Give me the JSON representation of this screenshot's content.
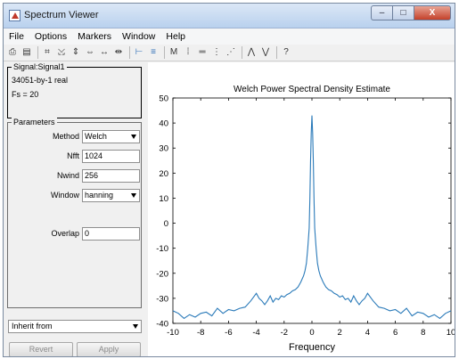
{
  "window": {
    "title": "Spectrum Viewer",
    "min_glyph": "–",
    "max_glyph": "□",
    "close_glyph": "X"
  },
  "menu": [
    "File",
    "Options",
    "Markers",
    "Window",
    "Help"
  ],
  "toolbar": {
    "icons": [
      {
        "name": "print-icon",
        "glyph": "⎙"
      },
      {
        "name": "print-preview-icon",
        "glyph": "▤"
      },
      {
        "sep": true
      },
      {
        "name": "zoom-box-icon",
        "glyph": "⌗"
      },
      {
        "name": "zoom-out-icon",
        "glyph": "⤩"
      },
      {
        "name": "zoom-y-icon",
        "glyph": "⇕"
      },
      {
        "name": "zoom-x-in-icon",
        "glyph": "⇔"
      },
      {
        "name": "zoom-x-out-icon",
        "glyph": "↔"
      },
      {
        "name": "zoom-full-icon",
        "glyph": "⇹"
      },
      {
        "sep": true
      },
      {
        "name": "select-line-icon",
        "glyph": "⊢",
        "blue": true
      },
      {
        "name": "legend-icon",
        "glyph": "≡",
        "blue": true
      },
      {
        "sep": true
      },
      {
        "name": "markers-icon",
        "glyph": "M"
      },
      {
        "name": "vertical-markers-icon",
        "glyph": "⁞"
      },
      {
        "name": "horizontal-markers-icon",
        "glyph": "═"
      },
      {
        "name": "track-markers-icon",
        "glyph": "⋮"
      },
      {
        "name": "slope-markers-icon",
        "glyph": "⋰"
      },
      {
        "sep": true
      },
      {
        "name": "peaks-icon",
        "glyph": "⋀"
      },
      {
        "name": "valleys-icon",
        "glyph": "⋁"
      },
      {
        "sep": true
      },
      {
        "name": "whats-this-icon",
        "glyph": "?"
      }
    ]
  },
  "signal": {
    "group": "Signal:Signal1",
    "size": "34051-by-1 real",
    "fs": "Fs = 20"
  },
  "parameters": {
    "group": "Parameters",
    "method_label": "Method",
    "method_value": "Welch",
    "nfft_label": "Nfft",
    "nfft_value": "1024",
    "nwind_label": "Nwind",
    "nwind_value": "256",
    "window_label": "Window",
    "window_value": "hanning",
    "overlap_label": "Overlap",
    "overlap_value": "0"
  },
  "inherit": {
    "value": "Inherit from"
  },
  "buttons": {
    "revert": "Revert",
    "apply": "Apply"
  },
  "chart_data": {
    "type": "line",
    "title": "Welch Power Spectral Density Estimate",
    "xlabel": "Frequency",
    "ylabel": "",
    "xlim": [
      -10,
      10
    ],
    "ylim": [
      -40,
      50
    ],
    "xticks": [
      -10,
      -8,
      -6,
      -4,
      -2,
      0,
      2,
      4,
      6,
      8,
      10
    ],
    "yticks": [
      -40,
      -30,
      -20,
      -10,
      0,
      10,
      20,
      30,
      40,
      50
    ],
    "grid": false,
    "line_color": "#2a7ab9",
    "series": [
      {
        "x": [
          -10,
          -9.6,
          -9.2,
          -8.8,
          -8.4,
          -8,
          -7.6,
          -7.2,
          -6.8,
          -6.4,
          -6,
          -5.6,
          -5.2,
          -4.8,
          -4.4,
          -4,
          -3.8,
          -3.6,
          -3.4,
          -3.2,
          -3,
          -2.8,
          -2.6,
          -2.4,
          -2.2,
          -2,
          -1.8,
          -1.6,
          -1.4,
          -1.2,
          -1,
          -0.8,
          -0.6,
          -0.5,
          -0.4,
          -0.3,
          -0.2,
          -0.15,
          -0.1,
          -0.05,
          0,
          0.05,
          0.1,
          0.15,
          0.2,
          0.3,
          0.4,
          0.5,
          0.6,
          0.8,
          1,
          1.2,
          1.4,
          1.6,
          1.8,
          2,
          2.2,
          2.4,
          2.6,
          2.8,
          3,
          3.2,
          3.4,
          3.6,
          3.8,
          4,
          4.4,
          4.8,
          5.2,
          5.6,
          6,
          6.4,
          6.8,
          7.2,
          7.6,
          8,
          8.4,
          8.8,
          9.2,
          9.6,
          10
        ],
        "y": [
          -35,
          -36,
          -38,
          -36.5,
          -37.5,
          -36,
          -35.5,
          -37,
          -34,
          -36,
          -34.5,
          -35,
          -34,
          -33.5,
          -31,
          -28,
          -30,
          -31,
          -32.5,
          -31,
          -29,
          -31.5,
          -30,
          -30.5,
          -29,
          -29.5,
          -28.5,
          -28,
          -27,
          -26.5,
          -25.5,
          -23.5,
          -21,
          -19,
          -16,
          -10,
          -2,
          10,
          24,
          36,
          43,
          36,
          24,
          10,
          -2,
          -10,
          -16,
          -19,
          -21,
          -23.5,
          -25.5,
          -26.5,
          -27,
          -28,
          -28.5,
          -29.5,
          -29,
          -30.5,
          -30,
          -31.5,
          -29,
          -31,
          -32.5,
          -31,
          -30,
          -28,
          -31,
          -33.5,
          -34,
          -35,
          -34.5,
          -36,
          -34,
          -37,
          -35.5,
          -36,
          -37.5,
          -36.5,
          -38,
          -36,
          -35
        ]
      }
    ]
  }
}
